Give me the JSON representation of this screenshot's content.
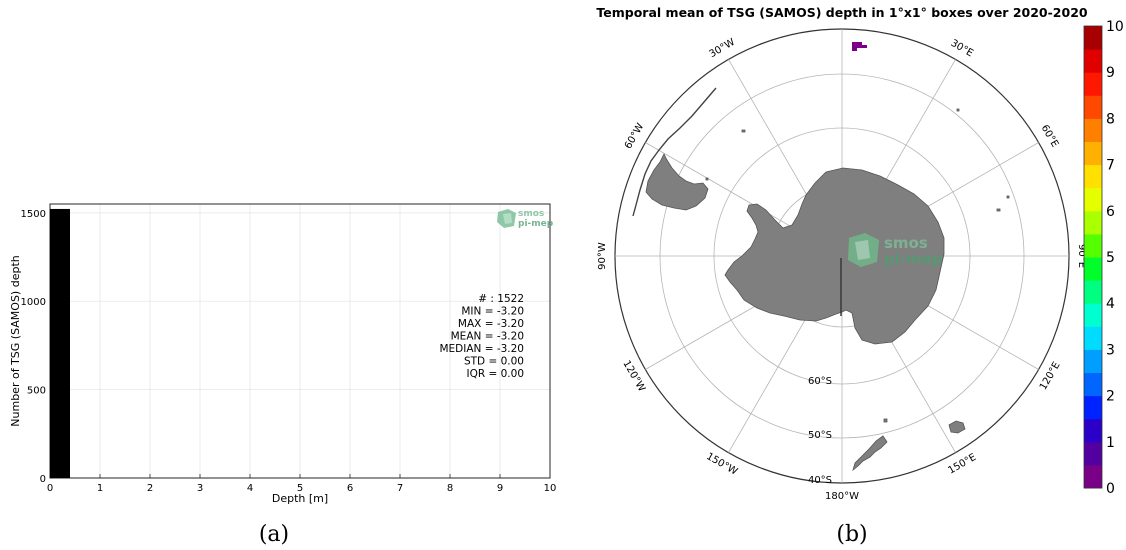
{
  "panels": [
    {
      "caption": "(a)",
      "chart_data": {
        "type": "bar",
        "xlabel": "Depth [m]",
        "ylabel": "Number of TSG (SAMOS) depth",
        "xlim": [
          0,
          10
        ],
        "ylim": [
          0,
          1550
        ],
        "xticks": [
          "0",
          "1",
          "2",
          "3",
          "4",
          "5",
          "6",
          "7",
          "8",
          "9",
          "10"
        ],
        "yticks": [
          "0",
          "500",
          "1000",
          "1500"
        ],
        "grid": true,
        "bins": [
          {
            "x0": 0.0,
            "x1": 0.4,
            "value": 1522
          }
        ],
        "bar_color": "#000000",
        "stats": [
          "# : 1522",
          "MIN = -3.20",
          "MAX =  -3.20",
          "MEAN = -3.20",
          "MEDIAN = -3.20",
          "STD = 0.00",
          "IQR = 0.00"
        ],
        "logo": {
          "line1": "smos",
          "line2": "pi-mep",
          "color": "#5fa87f"
        }
      }
    },
    {
      "caption": "(b)",
      "chart_data": {
        "type": "heatmap",
        "title": "Temporal mean of TSG (SAMOS) depth in 1°x1° boxes over 2020-2020",
        "projection": "south-polar stereographic",
        "meridian_labels": [
          "30°W",
          "30°E",
          "60°W",
          "60°E",
          "90°W",
          "90°E",
          "120°W",
          "120°E",
          "150°W",
          "150°E",
          "180°W"
        ],
        "parallel_labels": [
          "60°S",
          "50°S",
          "40°S"
        ],
        "colorbar": {
          "min": 0,
          "max": 10,
          "ticks": [
            "0",
            "1",
            "2",
            "3",
            "4",
            "5",
            "6",
            "7",
            "8",
            "9",
            "10"
          ],
          "colors": [
            "#7a0087",
            "#5200a0",
            "#2b00c8",
            "#0022ff",
            "#0066ff",
            "#009eff",
            "#00dcff",
            "#00ffd0",
            "#00ff80",
            "#00ff2a",
            "#55ff00",
            "#aaff00",
            "#e6ff00",
            "#ffe000",
            "#ffb000",
            "#ff7f00",
            "#ff4800",
            "#ff1800",
            "#e00000",
            "#a80000"
          ]
        },
        "data_cells": [
          {
            "note": "visible cluster near 0° meridian at about 42°S",
            "value": 0,
            "color": "#7a0087"
          }
        ],
        "land_color": "#7f7f7f",
        "logo": {
          "line1": "smos",
          "line2": "pi-mep",
          "color": "#5fa87f"
        }
      }
    }
  ]
}
